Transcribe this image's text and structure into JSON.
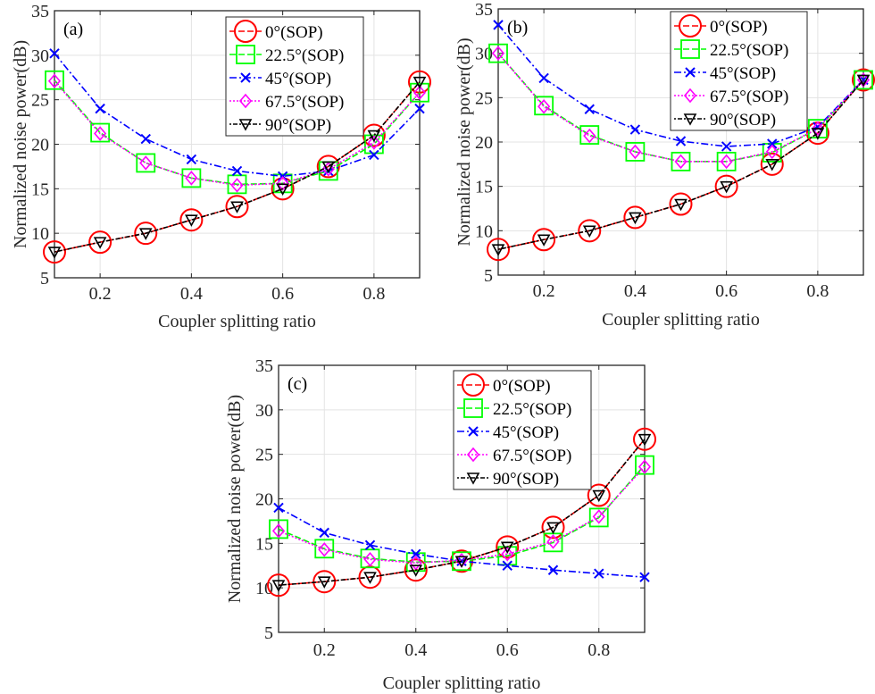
{
  "chart_data": [
    {
      "type": "line",
      "panel_label": "(a)",
      "xlabel": "Coupler splitting ratio",
      "ylabel": "Normalized noise power(dB)",
      "xlim": [
        0.1,
        0.9
      ],
      "ylim": [
        5,
        35
      ],
      "xticks": [
        "0.2",
        "0.4",
        "0.6",
        "0.8"
      ],
      "yticks": [
        "5",
        "10",
        "15",
        "20",
        "25",
        "30",
        "35"
      ],
      "grid": true,
      "legend_position": "top-right",
      "x": [
        0.1,
        0.2,
        0.3,
        0.4,
        0.5,
        0.6,
        0.7,
        0.8,
        0.9
      ],
      "series": [
        {
          "name": "0°(SOP)",
          "color": "#ff0000",
          "marker": "circle",
          "values": [
            7.9,
            9.0,
            10.0,
            11.5,
            13.0,
            15.0,
            17.5,
            21.0,
            27.0
          ]
        },
        {
          "name": "22.5°(SOP)",
          "color": "#00ff00",
          "marker": "square",
          "values": [
            27.2,
            21.3,
            17.9,
            16.2,
            15.5,
            15.6,
            17.0,
            20.0,
            25.8
          ]
        },
        {
          "name": "45°(SOP)",
          "color": "#0000ff",
          "marker": "x",
          "values": [
            30.2,
            24.0,
            20.6,
            18.3,
            17.0,
            16.4,
            17.0,
            18.8,
            24.0
          ]
        },
        {
          "name": "67.5°(SOP)",
          "color": "#ff00ff",
          "marker": "diamond",
          "values": [
            27.1,
            21.2,
            17.9,
            16.2,
            15.4,
            15.6,
            17.2,
            20.2,
            25.8
          ]
        },
        {
          "name": "90°(SOP)",
          "color": "#000000",
          "marker": "triangle-down",
          "values": [
            7.9,
            9.0,
            10.0,
            11.5,
            13.0,
            15.0,
            17.5,
            21.0,
            27.0
          ]
        }
      ]
    },
    {
      "type": "line",
      "panel_label": "(b)",
      "xlabel": "Coupler splitting ratio",
      "ylabel": "Normalized noise power(dB)",
      "xlim": [
        0.1,
        0.9
      ],
      "ylim": [
        5,
        35
      ],
      "xticks": [
        "0.2",
        "0.4",
        "0.6",
        "0.8"
      ],
      "yticks": [
        "5",
        "10",
        "15",
        "20",
        "25",
        "30",
        "35"
      ],
      "grid": true,
      "legend_position": "top-right",
      "x": [
        0.1,
        0.2,
        0.3,
        0.4,
        0.5,
        0.6,
        0.7,
        0.8,
        0.9
      ],
      "series": [
        {
          "name": "0°(SOP)",
          "color": "#ff0000",
          "marker": "circle",
          "values": [
            7.9,
            9.0,
            10.0,
            11.5,
            13.0,
            15.0,
            17.5,
            21.0,
            27.0
          ]
        },
        {
          "name": "22.5°(SOP)",
          "color": "#00ff00",
          "marker": "square",
          "values": [
            30.0,
            24.1,
            20.8,
            18.9,
            17.8,
            17.8,
            18.8,
            21.5,
            27.0
          ]
        },
        {
          "name": "45°(SOP)",
          "color": "#0000ff",
          "marker": "x",
          "values": [
            33.2,
            27.2,
            23.7,
            21.4,
            20.1,
            19.5,
            19.8,
            21.7,
            27.0
          ]
        },
        {
          "name": "67.5°(SOP)",
          "color": "#ff00ff",
          "marker": "diamond",
          "values": [
            30.0,
            24.0,
            20.7,
            18.9,
            17.8,
            17.8,
            18.9,
            21.5,
            27.0
          ]
        },
        {
          "name": "90°(SOP)",
          "color": "#000000",
          "marker": "triangle-down",
          "values": [
            7.9,
            9.0,
            10.0,
            11.5,
            13.0,
            15.0,
            17.5,
            21.0,
            27.0
          ]
        }
      ]
    },
    {
      "type": "line",
      "panel_label": "(c)",
      "xlabel": "Coupler splitting ratio",
      "ylabel": "Normalized noise power(dB)",
      "xlim": [
        0.1,
        0.9
      ],
      "ylim": [
        5,
        35
      ],
      "xticks": [
        "0.2",
        "0.4",
        "0.6",
        "0.8"
      ],
      "yticks": [
        "5",
        "10",
        "15",
        "20",
        "25",
        "30",
        "35"
      ],
      "grid": true,
      "legend_position": "top-right",
      "x": [
        0.1,
        0.2,
        0.3,
        0.4,
        0.5,
        0.6,
        0.7,
        0.8,
        0.9
      ],
      "series": [
        {
          "name": "0°(SOP)",
          "color": "#ff0000",
          "marker": "circle",
          "values": [
            10.3,
            10.7,
            11.2,
            12.0,
            13.0,
            14.6,
            16.8,
            20.4,
            26.7
          ]
        },
        {
          "name": "22.5°(SOP)",
          "color": "#00ff00",
          "marker": "square",
          "values": [
            16.6,
            14.4,
            13.3,
            12.9,
            13.0,
            13.6,
            15.1,
            17.9,
            23.8
          ]
        },
        {
          "name": "45°(SOP)",
          "color": "#0000ff",
          "marker": "x",
          "values": [
            19.0,
            16.2,
            14.8,
            13.8,
            13.0,
            12.5,
            12.0,
            11.6,
            11.2
          ]
        },
        {
          "name": "67.5°(SOP)",
          "color": "#ff00ff",
          "marker": "diamond",
          "values": [
            16.4,
            14.3,
            13.2,
            12.8,
            13.1,
            13.8,
            15.2,
            18.0,
            23.6
          ]
        },
        {
          "name": "90°(SOP)",
          "color": "#000000",
          "marker": "triangle-down",
          "values": [
            10.3,
            10.7,
            11.2,
            12.0,
            13.0,
            14.6,
            16.8,
            20.4,
            26.7
          ]
        }
      ]
    }
  ]
}
